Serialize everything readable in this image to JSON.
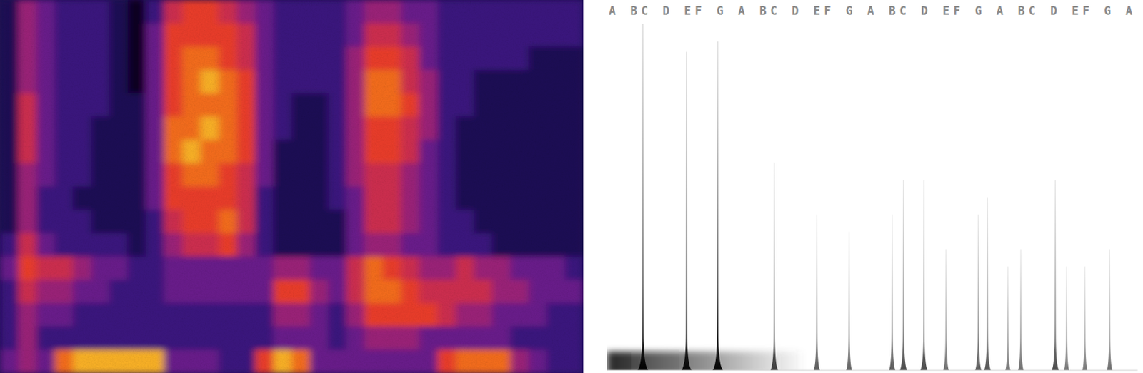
{
  "chart_data": [
    {
      "type": "heatmap",
      "tick_labels": false,
      "zlim": [
        0,
        9
      ],
      "cells": [
        [
          1,
          4,
          3,
          2,
          2,
          2,
          1,
          0,
          2,
          5,
          6,
          6,
          5,
          4,
          3,
          2,
          2,
          2,
          2,
          3,
          4,
          4,
          3,
          3,
          2,
          2,
          2,
          2,
          2,
          2,
          2,
          2
        ],
        [
          1,
          4,
          3,
          2,
          2,
          2,
          1,
          0,
          3,
          6,
          6,
          6,
          6,
          5,
          3,
          2,
          2,
          2,
          2,
          3,
          5,
          5,
          4,
          3,
          2,
          2,
          2,
          2,
          2,
          2,
          2,
          2
        ],
        [
          1,
          4,
          3,
          2,
          2,
          2,
          1,
          0,
          3,
          6,
          7,
          7,
          6,
          5,
          3,
          2,
          2,
          2,
          2,
          4,
          6,
          6,
          5,
          3,
          2,
          2,
          2,
          2,
          2,
          1,
          1,
          1
        ],
        [
          1,
          4,
          3,
          2,
          2,
          2,
          1,
          0,
          3,
          6,
          7,
          8,
          7,
          6,
          3,
          2,
          2,
          2,
          2,
          4,
          7,
          7,
          5,
          4,
          2,
          2,
          1,
          1,
          1,
          1,
          1,
          1
        ],
        [
          1,
          5,
          3,
          2,
          2,
          2,
          1,
          1,
          3,
          6,
          7,
          7,
          7,
          6,
          3,
          2,
          1,
          1,
          2,
          4,
          7,
          7,
          6,
          4,
          2,
          2,
          1,
          1,
          1,
          1,
          1,
          1
        ],
        [
          1,
          5,
          3,
          2,
          2,
          1,
          1,
          1,
          3,
          7,
          7,
          8,
          7,
          6,
          3,
          2,
          1,
          1,
          2,
          4,
          6,
          6,
          5,
          4,
          2,
          1,
          1,
          1,
          1,
          1,
          1,
          1
        ],
        [
          1,
          5,
          3,
          2,
          2,
          1,
          1,
          1,
          3,
          7,
          8,
          7,
          7,
          6,
          3,
          1,
          1,
          1,
          2,
          4,
          6,
          6,
          5,
          3,
          2,
          1,
          1,
          1,
          1,
          1,
          1,
          1
        ],
        [
          1,
          4,
          3,
          2,
          2,
          1,
          1,
          1,
          3,
          6,
          7,
          7,
          6,
          5,
          3,
          1,
          1,
          1,
          2,
          4,
          5,
          5,
          4,
          3,
          2,
          1,
          1,
          1,
          1,
          1,
          1,
          1
        ],
        [
          1,
          4,
          2,
          2,
          1,
          1,
          1,
          1,
          3,
          6,
          6,
          6,
          6,
          5,
          2,
          1,
          1,
          1,
          2,
          3,
          5,
          5,
          4,
          3,
          2,
          1,
          1,
          1,
          1,
          1,
          1,
          1
        ],
        [
          1,
          4,
          2,
          2,
          2,
          1,
          1,
          1,
          2,
          5,
          6,
          6,
          7,
          5,
          2,
          1,
          1,
          1,
          1,
          3,
          5,
          5,
          4,
          3,
          2,
          2,
          1,
          1,
          1,
          1,
          1,
          1
        ],
        [
          2,
          5,
          3,
          2,
          2,
          2,
          2,
          1,
          2,
          4,
          5,
          5,
          6,
          4,
          2,
          1,
          1,
          1,
          1,
          3,
          4,
          4,
          3,
          3,
          2,
          2,
          2,
          1,
          1,
          1,
          1,
          1
        ],
        [
          3,
          6,
          5,
          5,
          4,
          3,
          3,
          2,
          2,
          3,
          3,
          3,
          3,
          3,
          3,
          4,
          4,
          3,
          3,
          5,
          7,
          6,
          5,
          4,
          4,
          5,
          4,
          4,
          3,
          3,
          3,
          2
        ],
        [
          2,
          5,
          4,
          4,
          3,
          3,
          2,
          2,
          2,
          3,
          3,
          3,
          3,
          3,
          3,
          6,
          6,
          4,
          3,
          5,
          7,
          7,
          6,
          5,
          5,
          5,
          5,
          4,
          4,
          3,
          3,
          3
        ],
        [
          2,
          4,
          3,
          3,
          2,
          2,
          2,
          2,
          2,
          2,
          2,
          2,
          2,
          2,
          2,
          4,
          4,
          3,
          2,
          4,
          6,
          6,
          6,
          6,
          5,
          4,
          4,
          3,
          3,
          3,
          2,
          2
        ],
        [
          2,
          4,
          2,
          2,
          2,
          2,
          2,
          2,
          2,
          2,
          2,
          2,
          2,
          2,
          2,
          3,
          3,
          3,
          2,
          3,
          4,
          4,
          4,
          3,
          3,
          3,
          3,
          3,
          2,
          2,
          2,
          2
        ],
        [
          3,
          4,
          3,
          7,
          8,
          8,
          8,
          8,
          8,
          3,
          3,
          3,
          2,
          2,
          6,
          8,
          7,
          3,
          3,
          3,
          3,
          3,
          3,
          3,
          6,
          7,
          7,
          7,
          4,
          3,
          2,
          2
        ]
      ]
    },
    {
      "type": "stem",
      "tick_labels": "x",
      "grid": false,
      "xlim": [
        -0.5,
        48.8
      ],
      "ylim": [
        0,
        1
      ],
      "xticks": [
        {
          "value": 0,
          "label": "A"
        },
        {
          "value": 2,
          "label": "B"
        },
        {
          "value": 3,
          "label": "C"
        },
        {
          "value": 5,
          "label": "D"
        },
        {
          "value": 7,
          "label": "E"
        },
        {
          "value": 8,
          "label": "F"
        },
        {
          "value": 10,
          "label": "G"
        },
        {
          "value": 12,
          "label": "A"
        },
        {
          "value": 14,
          "label": "B"
        },
        {
          "value": 15,
          "label": "C"
        },
        {
          "value": 17,
          "label": "D"
        },
        {
          "value": 19,
          "label": "E"
        },
        {
          "value": 20,
          "label": "F"
        },
        {
          "value": 22,
          "label": "G"
        },
        {
          "value": 24,
          "label": "A"
        },
        {
          "value": 26,
          "label": "B"
        },
        {
          "value": 27,
          "label": "C"
        },
        {
          "value": 29,
          "label": "D"
        },
        {
          "value": 31,
          "label": "E"
        },
        {
          "value": 32,
          "label": "F"
        },
        {
          "value": 34,
          "label": "G"
        },
        {
          "value": 36,
          "label": "A"
        },
        {
          "value": 38,
          "label": "B"
        },
        {
          "value": 39,
          "label": "C"
        },
        {
          "value": 41,
          "label": "D"
        },
        {
          "value": 43,
          "label": "E"
        },
        {
          "value": 44,
          "label": "F"
        },
        {
          "value": 46,
          "label": "G"
        },
        {
          "value": 48,
          "label": "A"
        }
      ],
      "x": [
        2.85,
        6.9,
        9.8,
        15.05,
        19.0,
        22.0,
        26.0,
        27.05,
        28.95,
        31.0,
        34.0,
        34.85,
        36.75,
        37.95,
        41.15,
        42.2,
        43.9,
        46.2
      ],
      "values": [
        1.0,
        0.92,
        0.95,
        0.6,
        0.45,
        0.4,
        0.45,
        0.55,
        0.55,
        0.35,
        0.45,
        0.5,
        0.3,
        0.35,
        0.55,
        0.3,
        0.3,
        0.35
      ]
    }
  ]
}
